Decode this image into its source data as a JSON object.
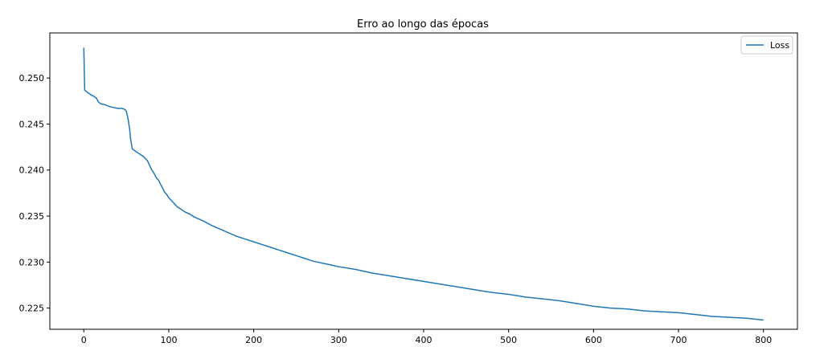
{
  "chart_data": {
    "type": "line",
    "title": "Erro ao longo das épocas",
    "xlabel": "",
    "ylabel": "",
    "xlim": [
      -40,
      840
    ],
    "ylim": [
      0.2227,
      0.2549
    ],
    "xticks": [
      0,
      100,
      200,
      300,
      400,
      500,
      600,
      700,
      800
    ],
    "xtick_labels": [
      "0",
      "100",
      "200",
      "300",
      "400",
      "500",
      "600",
      "700",
      "800"
    ],
    "yticks": [
      0.225,
      0.23,
      0.235,
      0.24,
      0.245,
      0.25
    ],
    "ytick_labels": [
      "0.225",
      "0.230",
      "0.235",
      "0.240",
      "0.245",
      "0.250"
    ],
    "grid": false,
    "legend_position": "top-right",
    "series": [
      {
        "name": "Loss",
        "color": "#1f77b4",
        "x": [
          0,
          1,
          2,
          5,
          8,
          12,
          15,
          17,
          20,
          25,
          30,
          35,
          40,
          45,
          48,
          50,
          52,
          54,
          55,
          57,
          60,
          63,
          65,
          68,
          70,
          72,
          75,
          78,
          80,
          83,
          85,
          88,
          90,
          93,
          95,
          98,
          100,
          105,
          110,
          115,
          120,
          125,
          130,
          140,
          150,
          160,
          170,
          180,
          190,
          200,
          210,
          220,
          230,
          240,
          250,
          260,
          270,
          280,
          290,
          300,
          320,
          340,
          360,
          380,
          400,
          420,
          440,
          460,
          480,
          500,
          520,
          540,
          560,
          580,
          600,
          620,
          640,
          660,
          680,
          700,
          720,
          740,
          760,
          780,
          790,
          800
        ],
        "y": [
          0.2533,
          0.2487,
          0.2486,
          0.2484,
          0.2482,
          0.248,
          0.2478,
          0.2474,
          0.2472,
          0.2471,
          0.2469,
          0.2468,
          0.2467,
          0.2467,
          0.2466,
          0.2464,
          0.2456,
          0.2444,
          0.2434,
          0.2423,
          0.2421,
          0.2419,
          0.2418,
          0.2416,
          0.2415,
          0.2413,
          0.241,
          0.2404,
          0.24,
          0.2396,
          0.2392,
          0.2389,
          0.2385,
          0.238,
          0.2376,
          0.2373,
          0.237,
          0.2365,
          0.236,
          0.2357,
          0.2354,
          0.2352,
          0.2349,
          0.2345,
          0.234,
          0.2336,
          0.2332,
          0.2328,
          0.2325,
          0.2322,
          0.2319,
          0.2316,
          0.2313,
          0.231,
          0.2307,
          0.2304,
          0.2301,
          0.2299,
          0.2297,
          0.2295,
          0.2292,
          0.2288,
          0.2285,
          0.2282,
          0.2279,
          0.2276,
          0.2273,
          0.227,
          0.2267,
          0.2265,
          0.2262,
          0.226,
          0.2258,
          0.2255,
          0.2252,
          0.225,
          0.2249,
          0.2247,
          0.2246,
          0.2245,
          0.2243,
          0.2241,
          0.224,
          0.2239,
          0.2238,
          0.2237
        ]
      }
    ]
  }
}
